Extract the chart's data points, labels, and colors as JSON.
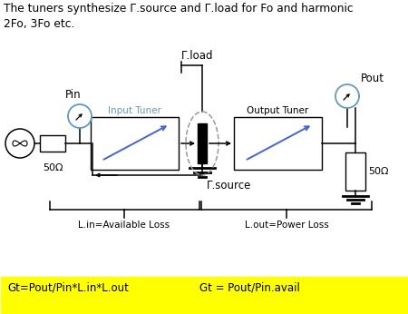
{
  "title_text": "The tuners synthesize Γ.source and Γ.load for Fo and harmonic\n2Fo, 3Fo etc.",
  "fig_bg": "#ffffff",
  "yellow_bg": "#ffff00",
  "bottom_text1": "Gt=Pout/Pin*L.in*L.out",
  "bottom_text2": "Gt = Pout/Pin.avail",
  "label_50ohm_left": "50Ω",
  "label_50ohm_right": "50Ω",
  "label_pin": "Pin",
  "label_pout": "Pout",
  "label_input_tuner": "Input Tuner",
  "label_output_tuner": "Output Tuner",
  "label_gamma_load": "Γ.load",
  "label_gamma_source": "Γ.source",
  "label_lin": "L.in=Available Loss",
  "label_lout": "L.out=Power Loss",
  "gauge_color": "#6699bb",
  "arrow_blue": "#4466cc",
  "gray_dash": "#888888"
}
